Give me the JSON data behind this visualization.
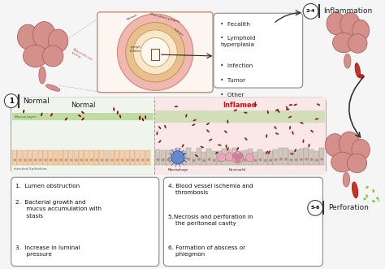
{
  "background_color": "#f5f5f5",
  "fig_width": 4.74,
  "fig_height": 3.31,
  "dpi": 100,
  "label_normal": "Normal",
  "label_inflammation": "Inflammation",
  "label_perforation": "Perforation",
  "label_1": "1",
  "label_24": "2-4",
  "label_56": "5-6",
  "causes_items": [
    "Fecalith",
    "Lymphoid\nhyperplasia",
    "Infection",
    "Tumor",
    "Other"
  ],
  "normal_section_label": "Normal",
  "inflamed_section_label": "Inflamed",
  "mucus_layer_label": "Mucus layer",
  "intestinal_label": "Intestinal Epithelium",
  "macrophage_label": "Macrophage",
  "neutrophil_label": "Neutrophil",
  "steps_left": [
    "1.  Lumen obstruction",
    "2.  Bacterial growth and\n      mucus accumulation with\n      stasis",
    "3.  Increase in luminal\n      pressure"
  ],
  "steps_right": [
    "4. Blood vessel ischemia and\n    thrombosis",
    "5.Necrosis and perforation in\n    the peritoneal cavity",
    "6. Formation of abscess or\n    phlegmon"
  ],
  "text_color_normal": "#222222",
  "text_color_inflamed": "#cc1111",
  "text_color_step": "#111111",
  "mucus_color": "#b8d898",
  "epithelium_color": "#f0d0b0",
  "epithelium_border": "#c89870",
  "inflamed_epi_color": "#d0c8c0",
  "inflamed_epi_border": "#a09080",
  "bacteria_color": "#7a1010",
  "inflamed_bg": "#fae8e8",
  "normal_bg": "#f0f5ec",
  "arrow_color": "#222222",
  "circle_outline": "#444444",
  "organ_color": "#d4908a",
  "organ_edge": "#b06060",
  "append_color": "#cc4444",
  "append_edge": "#992222",
  "green_drop": "#88cc44",
  "box_edge": "#888888"
}
